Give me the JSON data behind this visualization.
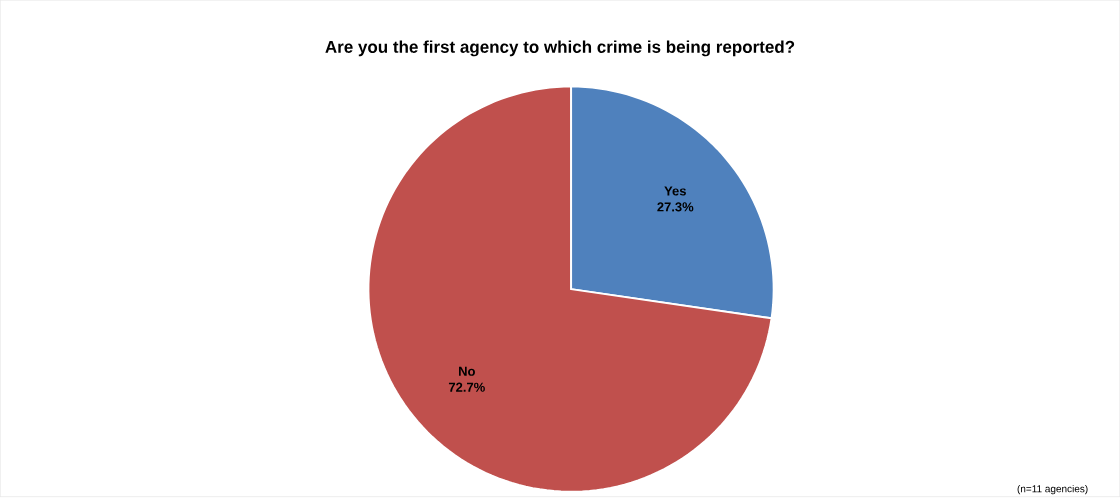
{
  "chart_data": {
    "type": "pie",
    "title": "Are you the first agency to which crime is being reported?",
    "categories": [
      "Yes",
      "No"
    ],
    "values": [
      27.3,
      72.7
    ],
    "colors": [
      "#4f81bd",
      "#c0504d"
    ],
    "value_labels": [
      "27.3%",
      "72.7%"
    ],
    "annotations": [
      "(n=11 agencies)"
    ]
  }
}
